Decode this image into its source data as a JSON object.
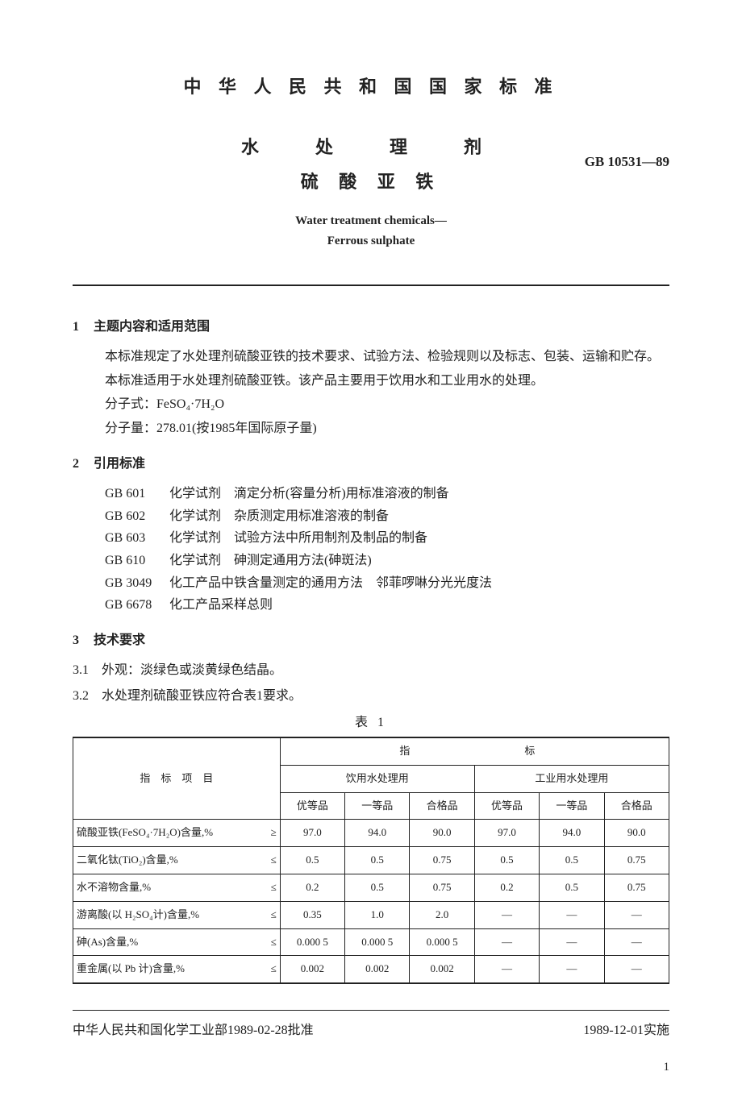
{
  "header": "中 华 人 民 共 和 国 国 家 标 准",
  "title": {
    "line1": "水　处　理　剂",
    "line2": "硫 酸 亚 铁",
    "code": "GB 10531—89",
    "en1": "Water treatment chemicals—",
    "en2": "Ferrous sulphate"
  },
  "s1": {
    "heading": "主题内容和适用范围",
    "num": "1",
    "p1": "本标准规定了水处理剂硫酸亚铁的技术要求、试验方法、检验规则以及标志、包装、运输和贮存。",
    "p2": "本标准适用于水处理剂硫酸亚铁。该产品主要用于饮用水和工业用水的处理。",
    "p3": "分子式：FeSO₄·7H₂O",
    "p4": "分子量：278.01(按1985年国际原子量)"
  },
  "s2": {
    "heading": "引用标准",
    "num": "2",
    "refs": [
      {
        "code": "GB 601",
        "text": "化学试剂　滴定分析(容量分析)用标准溶液的制备"
      },
      {
        "code": "GB 602",
        "text": "化学试剂　杂质测定用标准溶液的制备"
      },
      {
        "code": "GB 603",
        "text": "化学试剂　试验方法中所用制剂及制品的制备"
      },
      {
        "code": "GB 610",
        "text": "化学试剂　砷测定通用方法(砷斑法)"
      },
      {
        "code": "GB 3049",
        "text": "化工产品中铁含量测定的通用方法　邻菲啰啉分光光度法"
      },
      {
        "code": "GB 6678",
        "text": "化工产品采样总则"
      }
    ]
  },
  "s3": {
    "heading": "技术要求",
    "num": "3",
    "s31": "3.1　外观：淡绿色或淡黄绿色结晶。",
    "s32": "3.2　水处理剂硫酸亚铁应符合表1要求。"
  },
  "table": {
    "caption": "表 1",
    "col_item": "指　标　项　目",
    "col_group": "指　　　　标",
    "sub1": "饮用水处理用",
    "sub2": "工业用水处理用",
    "grades": [
      "优等品",
      "一等品",
      "合格品",
      "优等品",
      "一等品",
      "合格品"
    ],
    "rows": [
      {
        "name": "硫酸亚铁(FeSO₄·7H₂O)含量,%",
        "op": "≥",
        "v": [
          "97.0",
          "94.0",
          "90.0",
          "97.0",
          "94.0",
          "90.0"
        ]
      },
      {
        "name": "二氧化钛(TiO₂)含量,%",
        "op": "≤",
        "v": [
          "0.5",
          "0.5",
          "0.75",
          "0.5",
          "0.5",
          "0.75"
        ]
      },
      {
        "name": "水不溶物含量,%",
        "op": "≤",
        "v": [
          "0.2",
          "0.5",
          "0.75",
          "0.2",
          "0.5",
          "0.75"
        ]
      },
      {
        "name": "游离酸(以 H₂SO₄计)含量,%",
        "op": "≤",
        "v": [
          "0.35",
          "1.0",
          "2.0",
          "—",
          "—",
          "—"
        ]
      },
      {
        "name": "砷(As)含量,%",
        "op": "≤",
        "v": [
          "0.000 5",
          "0.000 5",
          "0.000 5",
          "—",
          "—",
          "—"
        ]
      },
      {
        "name": "重金属(以 Pb 计)含量,%",
        "op": "≤",
        "v": [
          "0.002",
          "0.002",
          "0.002",
          "—",
          "—",
          "—"
        ]
      }
    ]
  },
  "footer": {
    "left": "中华人民共和国化学工业部1989-02-28批准",
    "right": "1989-12-01实施",
    "page": "1"
  }
}
